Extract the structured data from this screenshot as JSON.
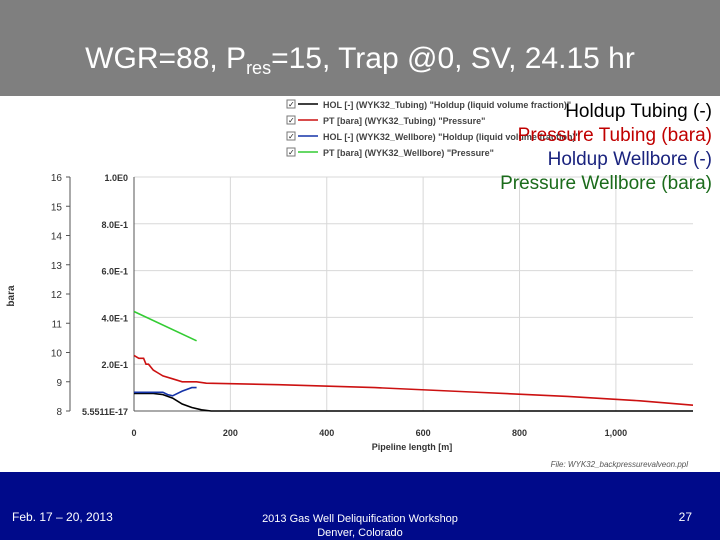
{
  "slide": {
    "title_main": "WGR=88, P",
    "title_sub": "res",
    "title_rest": "=15, Trap @0, SV, 24.15 hr",
    "footer_date": "Feb. 17 – 20, 2013",
    "footer_workshop_line1": "2013 Gas Well Deliquification Workshop",
    "footer_workshop_line2": "Denver, Colorado",
    "page_number": "27"
  },
  "overlay_legend": [
    {
      "text": "Holdup Tubing (-)",
      "color": "#000000"
    },
    {
      "text": "Pressure Tubing (bara)",
      "color": "#c00000"
    },
    {
      "text": "Holdup Wellbore (-)",
      "color": "#1a237e"
    },
    {
      "text": "Pressure Wellbore (bara)",
      "color": "#1b6b1b"
    }
  ],
  "colors": {
    "title_bar": "#7f7f7f",
    "footer_bar": "#000a8a",
    "hol_tubing": "#000000",
    "pt_tubing": "#cc1111",
    "hol_wellbore": "#1533a8",
    "pt_wellbore": "#33cc33"
  },
  "chart_data": {
    "type": "line",
    "xlabel": "Pipeline length [m]",
    "ylabel_left": "bara",
    "file_label": "File: WYK32_backpressurevalveon.ppl",
    "xlim": [
      0,
      1160
    ],
    "x_ticks": [
      0,
      200,
      400,
      600,
      800,
      1000
    ],
    "x_tick_labels": [
      "0",
      "200",
      "400",
      "600",
      "800",
      "1,000"
    ],
    "ylim_left": [
      8,
      16
    ],
    "y_left_ticks": [
      "8",
      "9",
      "10",
      "11",
      "12",
      "13",
      "14",
      "15",
      "16"
    ],
    "ylim_right": [
      0,
      1
    ],
    "y_right_tick_values": [
      0,
      0.2,
      0.4,
      0.6,
      0.8,
      1.0
    ],
    "y_right_tick_labels": [
      "5.5511E-17",
      "2.0E-1",
      "4.0E-1",
      "6.0E-1",
      "8.0E-1",
      "1.0E0"
    ],
    "legend": [
      {
        "label": "HOL [-] (WYK32_Tubing) \"Holdup (liquid volume fraction)\"",
        "color": "#000000",
        "checked": true
      },
      {
        "label": "PT [bara] (WYK32_Tubing) \"Pressure\"",
        "color": "#cc1111",
        "checked": true
      },
      {
        "label": "HOL [-] (WYK32_Wellbore) \"Holdup (liquid volume fraction)\"",
        "color": "#1533a8",
        "checked": true
      },
      {
        "label": "PT [bara] (WYK32_Wellbore) \"Pressure\"",
        "color": "#33cc33",
        "checked": true
      }
    ],
    "series": [
      {
        "name": "HOL [-] (WYK32_Tubing)",
        "axis": "right",
        "color": "#000000",
        "x": [
          0,
          40,
          60,
          80,
          100,
          120,
          140,
          160,
          1160
        ],
        "y": [
          0.075,
          0.075,
          0.07,
          0.055,
          0.03,
          0.015,
          0.005,
          0.0,
          0.0
        ]
      },
      {
        "name": "PT [bara] (WYK32_Tubing)",
        "axis": "left",
        "color": "#cc1111",
        "x": [
          0,
          10,
          20,
          25,
          30,
          40,
          50,
          60,
          80,
          100,
          130,
          150,
          300,
          500,
          700,
          900,
          1050,
          1160
        ],
        "y": [
          9.9,
          9.8,
          9.8,
          9.6,
          9.6,
          9.4,
          9.3,
          9.2,
          9.1,
          9.0,
          9.0,
          8.95,
          8.9,
          8.8,
          8.65,
          8.5,
          8.35,
          8.2
        ]
      },
      {
        "name": "HOL [-] (WYK32_Wellbore)",
        "axis": "right",
        "color": "#1533a8",
        "x": [
          0,
          40,
          60,
          70,
          80,
          100,
          120,
          130
        ],
        "y": [
          0.08,
          0.08,
          0.08,
          0.07,
          0.065,
          0.085,
          0.1,
          0.1
        ]
      },
      {
        "name": "PT [bara] (WYK32_Wellbore)",
        "axis": "left",
        "color": "#33cc33",
        "x": [
          0,
          130
        ],
        "y": [
          11.4,
          10.4
        ]
      }
    ]
  }
}
